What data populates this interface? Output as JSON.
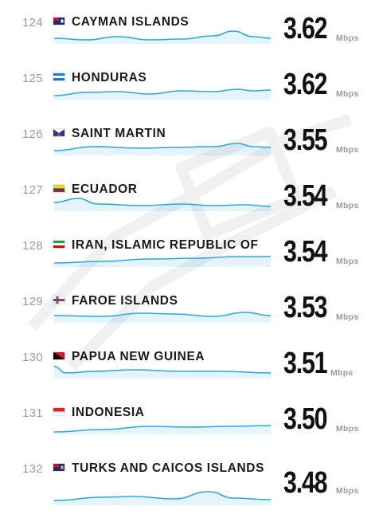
{
  "unit": "Mbps",
  "chart_data": {
    "type": "table",
    "columns": [
      "rank",
      "country",
      "download_speed_mbps"
    ],
    "rows": [
      {
        "rank": "124",
        "country": "CAYMAN ISLANDS",
        "speed": "3.62",
        "flag": "cayman"
      },
      {
        "rank": "125",
        "country": "HONDURAS",
        "speed": "3.62",
        "flag": "honduras"
      },
      {
        "rank": "126",
        "country": "SAINT MARTIN",
        "speed": "3.55",
        "flag": "saint-martin"
      },
      {
        "rank": "127",
        "country": "ECUADOR",
        "speed": "3.54",
        "flag": "ecuador"
      },
      {
        "rank": "128",
        "country": "IRAN, ISLAMIC REPUBLIC OF",
        "speed": "3.54",
        "flag": "iran"
      },
      {
        "rank": "129",
        "country": "FAROE ISLANDS",
        "speed": "3.53",
        "flag": "faroe"
      },
      {
        "rank": "130",
        "country": "PAPUA NEW GUINEA",
        "speed": "3.51",
        "flag": "png"
      },
      {
        "rank": "131",
        "country": "INDONESIA",
        "speed": "3.50",
        "flag": "indonesia"
      },
      {
        "rank": "132",
        "country": "TURKS AND CAICOS ISLANDS",
        "speed": "3.48",
        "flag": "turks-caicos"
      }
    ],
    "sparkline_color": "#29a8e0"
  }
}
